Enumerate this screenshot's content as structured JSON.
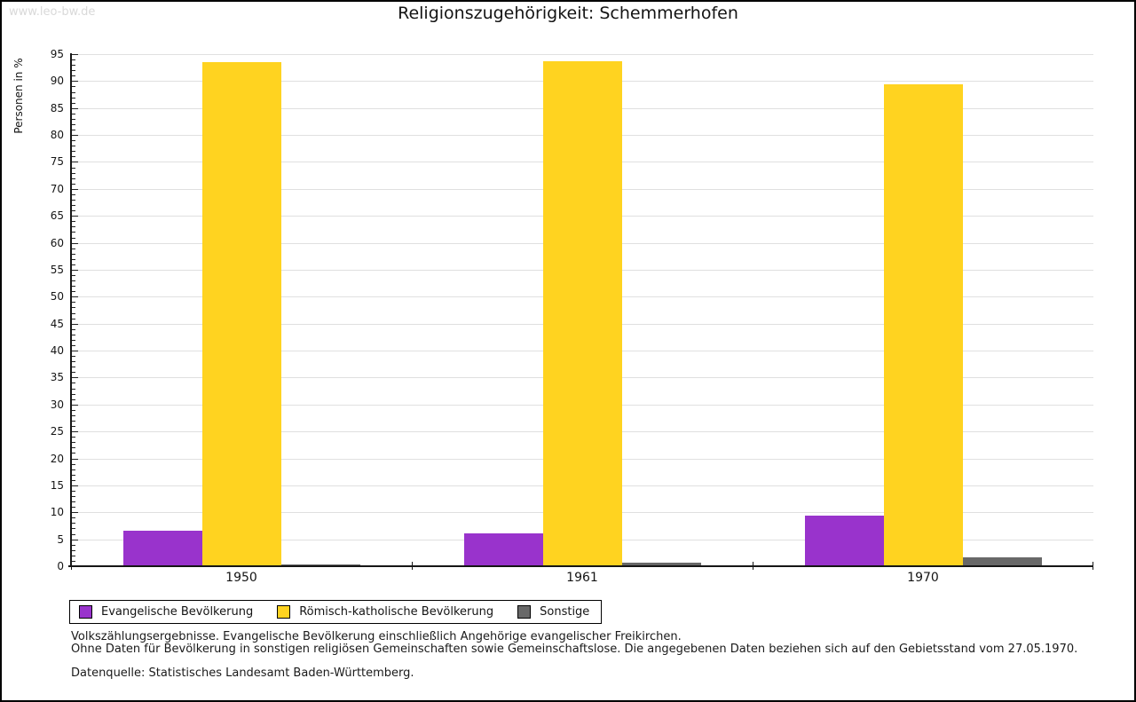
{
  "page": {
    "watermark": "www.leo-bw.de"
  },
  "chart_data": {
    "type": "bar",
    "title": "Religionszugehörigkeit: Schemmerhofen",
    "ylabel": "Personen in %",
    "xlabel": "",
    "categories": [
      "1950",
      "1961",
      "1970"
    ],
    "series": [
      {
        "name": "Evangelische Bevölkerung",
        "color": "#9933cc",
        "values": [
          6.4,
          6.0,
          9.2
        ]
      },
      {
        "name": "Römisch-katholische Bevölkerung",
        "color": "#ffd320",
        "values": [
          93.3,
          93.5,
          89.2
        ]
      },
      {
        "name": "Sonstige",
        "color": "#686868",
        "values": [
          0.2,
          0.5,
          1.5
        ]
      }
    ],
    "ylim": [
      0,
      95
    ],
    "ytick_step": 5,
    "yminor_step": 1,
    "grid": true,
    "legend_position": "bottom-left",
    "gridline_color": "#e0e0e0"
  },
  "footer": {
    "line1": "Volkszählungsergebnisse. Evangelische Bevölkerung einschließlich Angehörige evangelischer Freikirchen.",
    "line2": "Ohne Daten für Bevölkerung in sonstigen religiösen Gemeinschaften sowie Gemeinschaftslose. Die angegebenen Daten beziehen sich auf den Gebietsstand vom 27.05.1970.",
    "source": "Datenquelle: Statistisches Landesamt Baden-Württemberg."
  }
}
